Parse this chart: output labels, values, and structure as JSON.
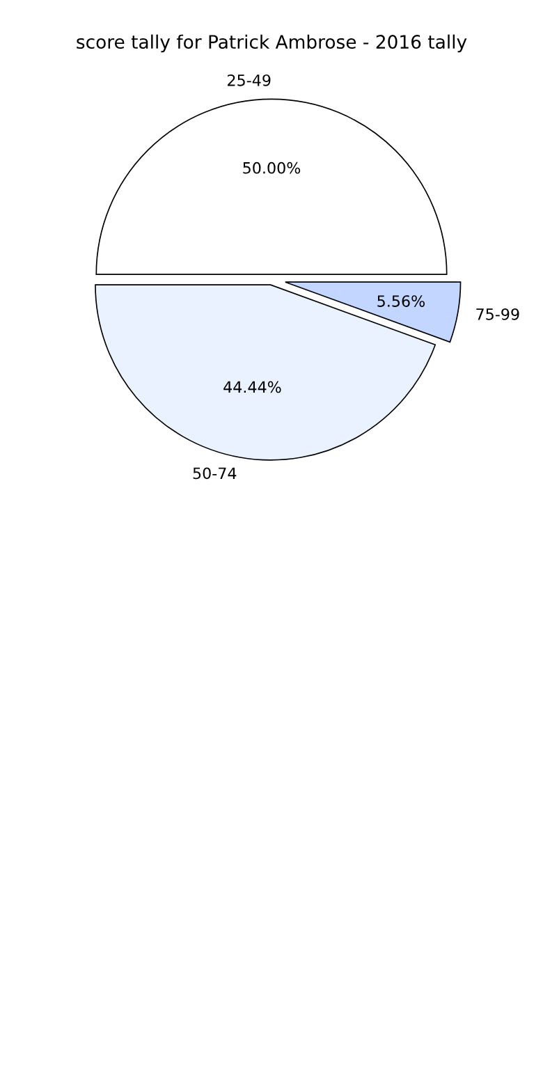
{
  "chart_data": {
    "type": "pie",
    "title": "score tally for Patrick Ambrose - 2016 tally",
    "categories": [
      "25-49",
      "50-74",
      "75-99"
    ],
    "values": [
      50,
      44.44,
      5.56
    ],
    "value_labels": [
      "50.00%",
      "44.44%",
      "5.56%"
    ],
    "colors": [
      "#ffffff",
      "#ebf2ff",
      "#c2d6ff"
    ]
  }
}
